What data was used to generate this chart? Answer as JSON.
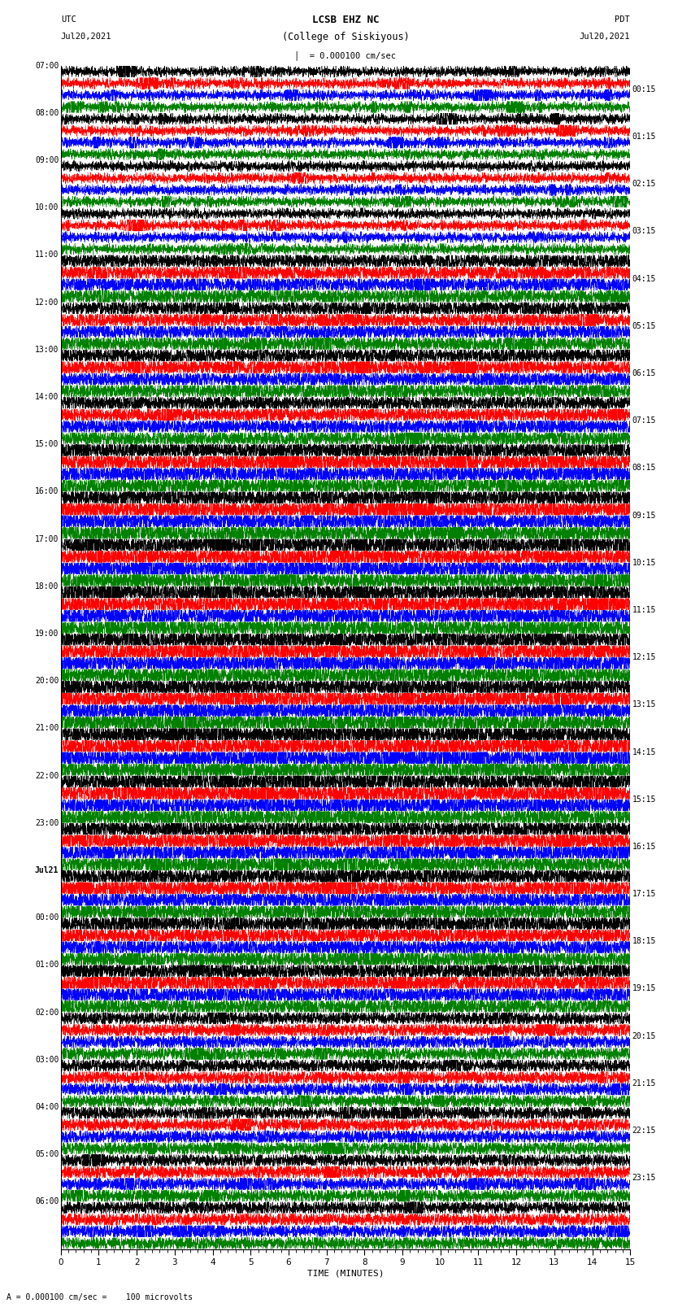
{
  "title_line1": "LCSB EHZ NC",
  "title_line2": "(College of Siskiyous)",
  "scale_label": "= 0.000100 cm/sec",
  "footer_label": "A = 0.000100 cm/sec =    100 microvolts",
  "utc_label": "UTC",
  "pdt_label": "PDT",
  "date_left": "Jul20,2021",
  "date_right": "Jul20,2021",
  "xlabel": "TIME (MINUTES)",
  "left_times": [
    "07:00",
    "08:00",
    "09:00",
    "10:00",
    "11:00",
    "12:00",
    "13:00",
    "14:00",
    "15:00",
    "16:00",
    "17:00",
    "18:00",
    "19:00",
    "20:00",
    "21:00",
    "22:00",
    "23:00",
    "Jul21",
    "00:00",
    "01:00",
    "02:00",
    "03:00",
    "04:00",
    "05:00",
    "06:00"
  ],
  "right_times": [
    "00:15",
    "01:15",
    "02:15",
    "03:15",
    "04:15",
    "05:15",
    "06:15",
    "07:15",
    "08:15",
    "09:15",
    "10:15",
    "11:15",
    "12:15",
    "13:15",
    "14:15",
    "15:15",
    "16:15",
    "17:15",
    "18:15",
    "19:15",
    "20:15",
    "21:15",
    "22:15",
    "23:15"
  ],
  "colors": [
    "black",
    "red",
    "blue",
    "green"
  ],
  "num_rows": 100,
  "minutes": 15,
  "bg_color": "white",
  "figsize": [
    8.5,
    16.13
  ],
  "dpi": 100
}
